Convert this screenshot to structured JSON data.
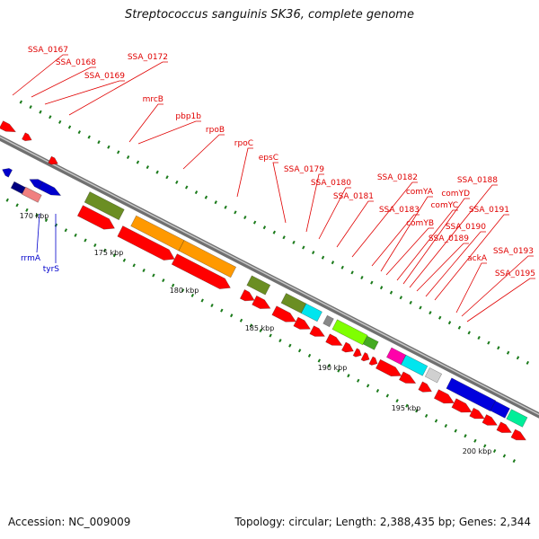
{
  "title": "Streptococcus sanguinis SK36, complete genome",
  "footer": {
    "accession": "Accession: NC_009009",
    "info": "Topology: circular; Length: 2,388,435 bp; Genes: 2,344"
  },
  "colors": {
    "label_red": "#e00000",
    "label_blue": "#0000cc",
    "tick_green": "#1a7a1a",
    "backbone": "#808080",
    "cds": "#ff0000",
    "cog_olive": "#6b8e23",
    "cog_orange": "#ff9900",
    "cog_cyan": "#00e5ee",
    "cog_lime": "#7fff00",
    "cog_magenta": "#ff00aa",
    "cog_blue": "#0000dd",
    "cog_grey": "#d0d0d0",
    "cog_teal": "#00ee99"
  },
  "kbp_labels": [
    "170 kbp",
    "175 kbp",
    "180 kbp",
    "185 kbp",
    "190 kbp",
    "195 kbp",
    "200 kbp"
  ],
  "red_labels": [
    "SSA_0167",
    "SSA_0168",
    "SSA_0169",
    "SSA_0172",
    "mrcB",
    "pbp1b",
    "rpoB",
    "rpoC",
    "epsC",
    "SSA_0179",
    "SSA_0180",
    "SSA_0181",
    "SSA_0182",
    "SSA_0183",
    "comYA",
    "comYB",
    "comYC",
    "comYD",
    "SSA_0188",
    "SSA_0189",
    "SSA_0190",
    "SSA_0191",
    "ackA",
    "SSA_0193",
    "SSA_0195"
  ],
  "blue_labels": [
    "rrmA",
    "tyrS"
  ]
}
